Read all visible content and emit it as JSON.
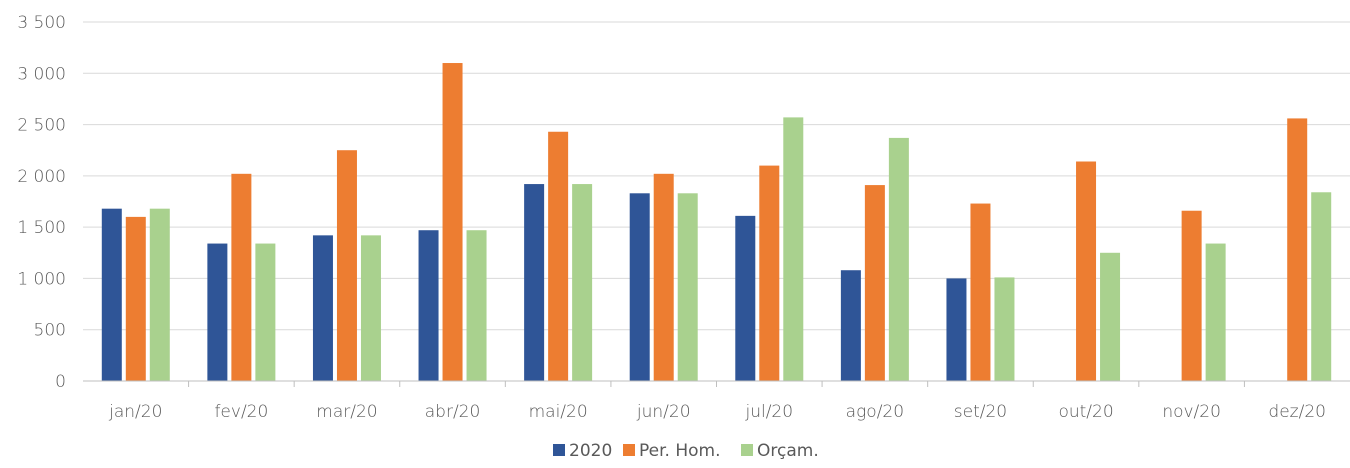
{
  "chart_data": {
    "type": "bar",
    "title": "",
    "xlabel": "",
    "ylabel": "",
    "categories": [
      "jan/20",
      "fev/20",
      "mar/20",
      "abr/20",
      "mai/20",
      "jun/20",
      "jul/20",
      "ago/20",
      "set/20",
      "out/20",
      "nov/20",
      "dez/20"
    ],
    "yticks": [
      0,
      500,
      1000,
      1500,
      2000,
      2500,
      3000,
      3500
    ],
    "ytick_labels": [
      "0",
      "500",
      "1 000",
      "1 500",
      "2 000",
      "2 500",
      "3 000",
      "3 500"
    ],
    "ylim": [
      0,
      3500
    ],
    "grid": true,
    "legend_position": "bottom-center",
    "series": [
      {
        "name": "2020",
        "color": "#2f5597",
        "values": [
          1680,
          1340,
          1420,
          1470,
          1920,
          1830,
          1610,
          1080,
          1000,
          null,
          null,
          null
        ]
      },
      {
        "name": "Per. Hom.",
        "color": "#ed7d31",
        "values": [
          1600,
          2020,
          2250,
          3100,
          2430,
          2020,
          2100,
          1910,
          1730,
          2140,
          1660,
          2560
        ]
      },
      {
        "name": "Orçam.",
        "color": "#a9d18e",
        "values": [
          1680,
          1340,
          1420,
          1470,
          1920,
          1830,
          2570,
          2370,
          1010,
          1250,
          1340,
          1840
        ]
      }
    ]
  }
}
